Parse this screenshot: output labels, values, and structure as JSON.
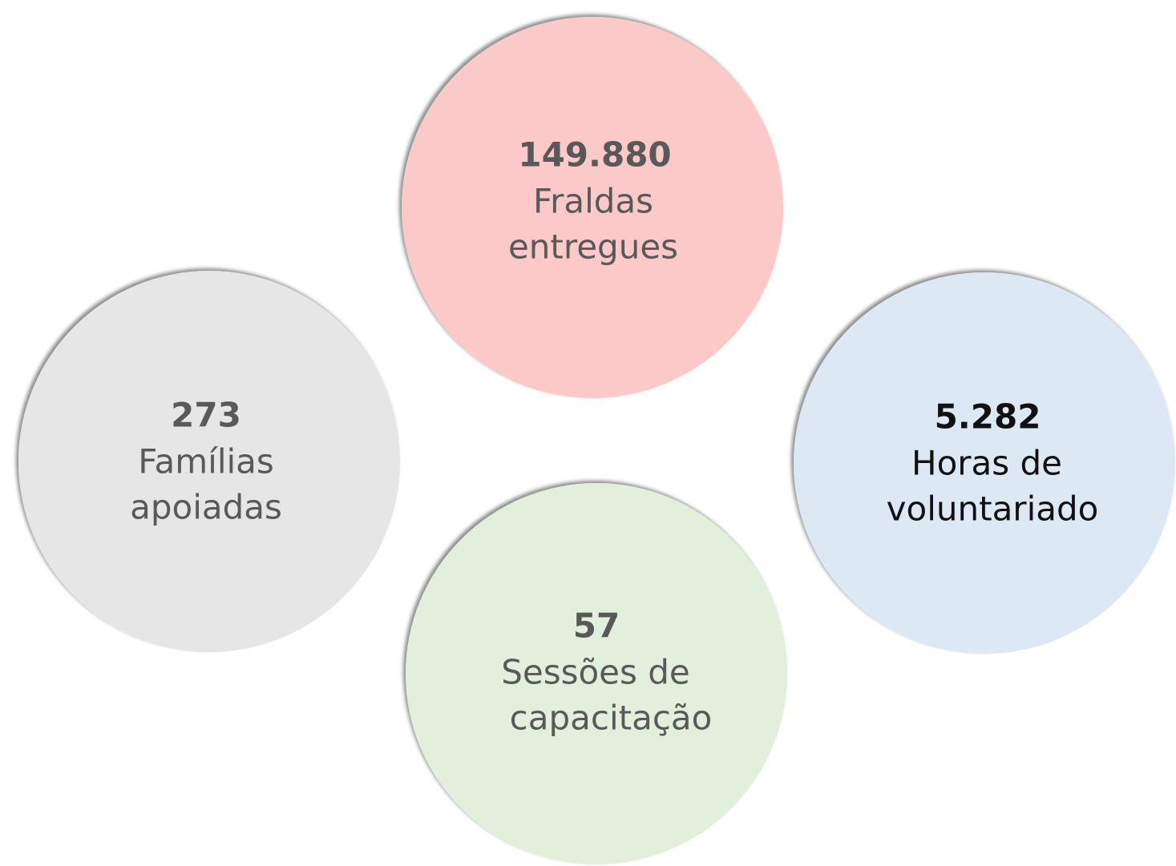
{
  "nodes": [
    {
      "value": "149.880",
      "lines": [
        "Fraldas",
        "entregues"
      ]
    },
    {
      "value": "273",
      "lines": [
        "Famílias",
        "apoiadas"
      ]
    },
    {
      "value": "5.282",
      "lines": [
        "Horas de",
        "voluntariado"
      ]
    },
    {
      "value": "57",
      "lines": [
        "Sessões de",
        "capacitação"
      ]
    }
  ]
}
